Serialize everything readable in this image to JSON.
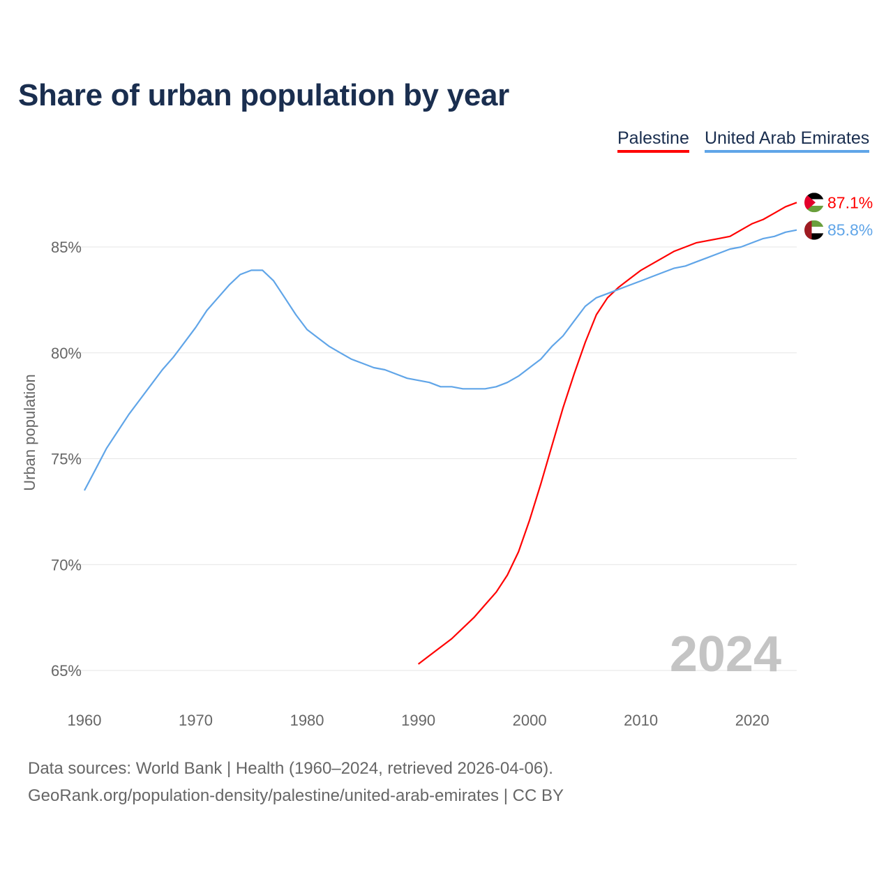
{
  "title": "Share of urban population by year",
  "legend": [
    {
      "label": "Palestine",
      "color": "#ff0000"
    },
    {
      "label": "United Arab Emirates",
      "color": "#60a5e8"
    }
  ],
  "footer": {
    "line1": "Data sources: World Bank | Health (1960–2024, retrieved 2026-04-06).",
    "line2": "GeoRank.org/population-density/palestine/united-arab-emirates | CC BY"
  },
  "chart_data": {
    "type": "line",
    "title": "Share of urban population by year",
    "ylabel": "Urban population",
    "xlabel": "",
    "xlim": [
      1960,
      2024
    ],
    "ylim": [
      65,
      87.5
    ],
    "xticks": [
      1960,
      1970,
      1980,
      1990,
      2000,
      2010,
      2020
    ],
    "yticks": [
      65,
      70,
      75,
      80,
      85
    ],
    "ytick_labels": [
      "65%",
      "70%",
      "75%",
      "80%",
      "85%"
    ],
    "grid": true,
    "legend_position": "top-right",
    "year_watermark": "2024",
    "series": [
      {
        "name": "Palestine",
        "color": "#ff0000",
        "end_label": "87.1%",
        "start_year": 1990,
        "values": [
          65.3,
          65.7,
          66.1,
          66.5,
          67.0,
          67.5,
          68.1,
          68.7,
          69.5,
          70.6,
          72.1,
          73.8,
          75.6,
          77.4,
          79.0,
          80.5,
          81.8,
          82.6,
          83.1,
          83.5,
          83.9,
          84.2,
          84.5,
          84.8,
          85.0,
          85.2,
          85.3,
          85.4,
          85.5,
          85.8,
          86.1,
          86.3,
          86.6,
          86.9,
          87.1
        ]
      },
      {
        "name": "United Arab Emirates",
        "color": "#60a5e8",
        "end_label": "85.8%",
        "start_year": 1960,
        "values": [
          73.5,
          74.5,
          75.5,
          76.3,
          77.1,
          77.8,
          78.5,
          79.2,
          79.8,
          80.5,
          81.2,
          82.0,
          82.6,
          83.2,
          83.7,
          83.9,
          83.9,
          83.4,
          82.6,
          81.8,
          81.1,
          80.7,
          80.3,
          80.0,
          79.7,
          79.5,
          79.3,
          79.2,
          79.0,
          78.8,
          78.7,
          78.6,
          78.4,
          78.4,
          78.3,
          78.3,
          78.3,
          78.4,
          78.6,
          78.9,
          79.3,
          79.7,
          80.3,
          80.8,
          81.5,
          82.2,
          82.6,
          82.8,
          83.0,
          83.2,
          83.4,
          83.6,
          83.8,
          84.0,
          84.1,
          84.3,
          84.5,
          84.7,
          84.9,
          85.0,
          85.2,
          85.4,
          85.5,
          85.7,
          85.8
        ]
      }
    ]
  }
}
